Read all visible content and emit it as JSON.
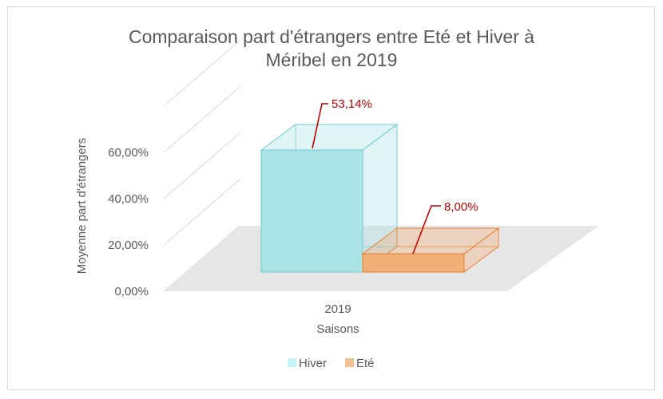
{
  "chart_data": {
    "type": "bar",
    "title": "Comparaison part d'étrangers entre Eté et Hiver à Méribel en 2019",
    "title_lines": [
      "Comparaison part d'étrangers entre Eté et Hiver à",
      "Méribel en 2019"
    ],
    "xlabel": "Saisons",
    "ylabel": "Moyenne part d'étrangers",
    "categories": [
      "2019"
    ],
    "series": [
      {
        "name": "Hiver",
        "values": [
          53.14
        ],
        "data_label": "53,14%",
        "color": "#a6e1e6",
        "edge": "#6cc9d2"
      },
      {
        "name": "Eté",
        "values": [
          8.0
        ],
        "data_label": "8,00%",
        "color": "#f2ad73",
        "edge": "#ed7d31"
      }
    ],
    "ylim": [
      0,
      60
    ],
    "yticks": [
      {
        "value": 0,
        "label": "0,00%"
      },
      {
        "value": 20,
        "label": "20,00%"
      },
      {
        "value": 40,
        "label": "40,00%"
      },
      {
        "value": 60,
        "label": "60,00%"
      }
    ],
    "legend_position": "bottom",
    "grid": true,
    "label_color": "#c00000"
  }
}
